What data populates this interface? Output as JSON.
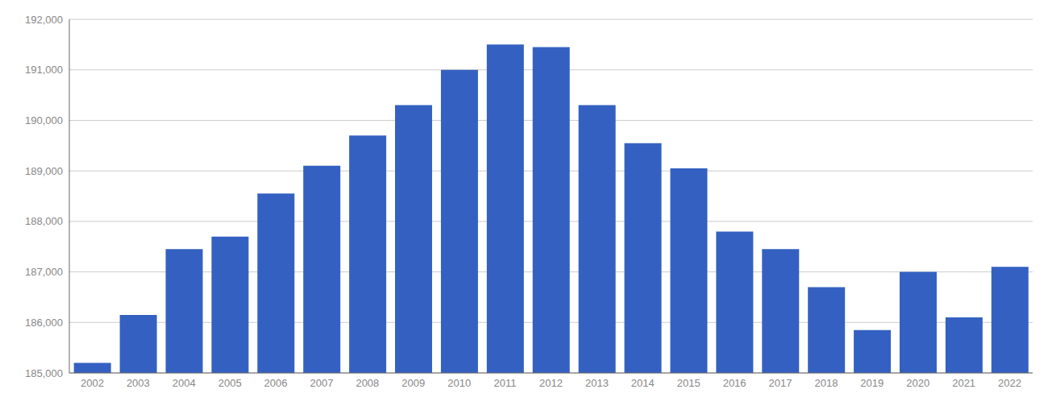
{
  "chart_data": {
    "type": "bar",
    "categories": [
      "2002",
      "2003",
      "2004",
      "2005",
      "2006",
      "2007",
      "2008",
      "2009",
      "2010",
      "2011",
      "2012",
      "2013",
      "2014",
      "2015",
      "2016",
      "2017",
      "2018",
      "2019",
      "2020",
      "2021",
      "2022"
    ],
    "values": [
      185200,
      186150,
      187450,
      187700,
      188550,
      189100,
      189700,
      190300,
      191000,
      191500,
      191450,
      190300,
      189550,
      189050,
      187800,
      187450,
      186700,
      185850,
      187000,
      186100,
      187100
    ],
    "color": "#3461c1",
    "ylim": [
      185000,
      192000
    ],
    "yticks": [
      {
        "value": 185000,
        "label": "185,000"
      },
      {
        "value": 186000,
        "label": "186,000"
      },
      {
        "value": 187000,
        "label": "187,000"
      },
      {
        "value": 188000,
        "label": "188,000"
      },
      {
        "value": 189000,
        "label": "189,000"
      },
      {
        "value": 190000,
        "label": "190,000"
      },
      {
        "value": 191000,
        "label": "191,000"
      },
      {
        "value": 192000,
        "label": "192,000"
      }
    ],
    "grid": true
  }
}
